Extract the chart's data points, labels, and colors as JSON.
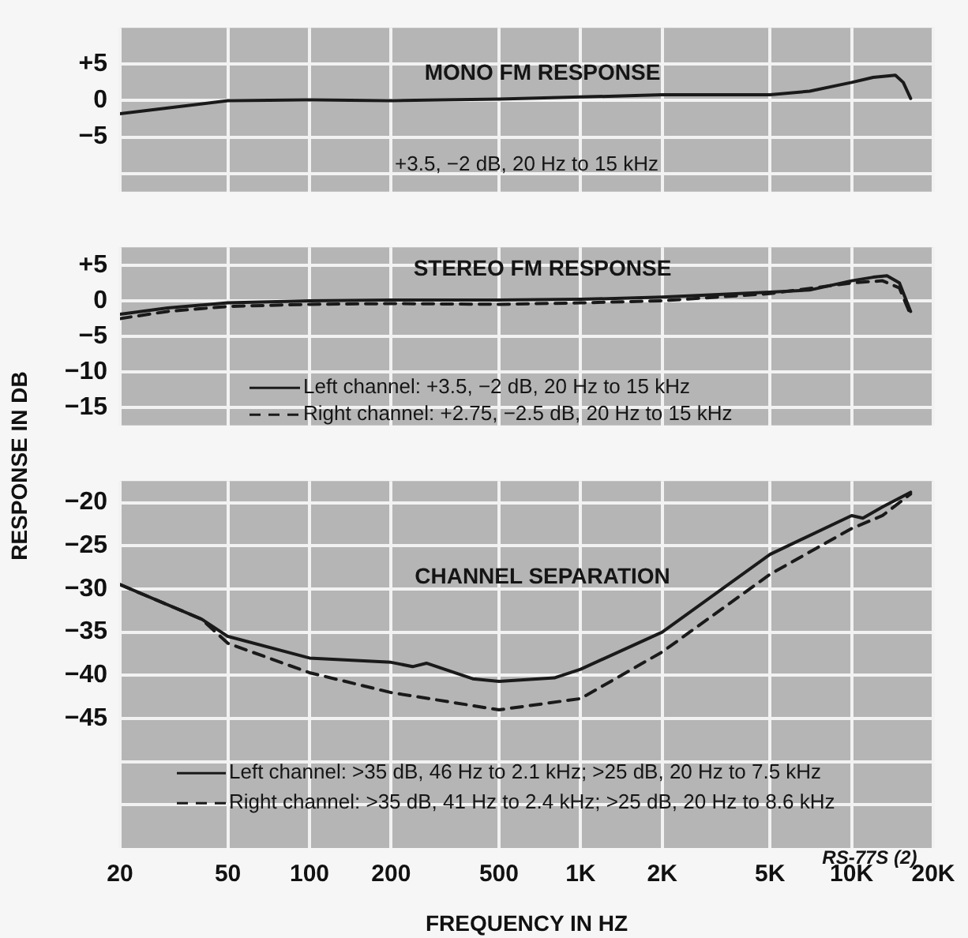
{
  "chart_data": [
    {
      "type": "line",
      "title": "MONO FM RESPONSE",
      "annotations": [
        "+3.5, −2 dB, 20 Hz to 15 kHz"
      ],
      "log": "x",
      "grid": true,
      "tick_labels": "y",
      "marker": "none",
      "xlim": [
        20,
        20000
      ],
      "xticks": [
        {
          "value": 20,
          "label": null
        },
        {
          "value": 50,
          "label": null
        },
        {
          "value": 100,
          "label": null
        },
        {
          "value": 200,
          "label": null
        },
        {
          "value": 500,
          "label": null
        },
        {
          "value": 1000,
          "label": null
        },
        {
          "value": 2000,
          "label": null
        },
        {
          "value": 5000,
          "label": null
        },
        {
          "value": 10000,
          "label": null
        },
        {
          "value": 20000,
          "label": null
        }
      ],
      "ylim": [
        -12.5,
        10
      ],
      "yticks": [
        {
          "value": 5,
          "label": "+5"
        },
        0,
        {
          "value": -5,
          "label": "−5"
        },
        {
          "value": -10,
          "label": null
        }
      ],
      "series": [
        {
          "color": "#1a1a1a",
          "line_style": "solid",
          "x": [
            20,
            30,
            50,
            100,
            200,
            500,
            1000,
            2000,
            5000,
            7000,
            10000,
            12000,
            14500,
            15500,
            16500
          ],
          "values": [
            -1.8,
            -1,
            0,
            0.1,
            0,
            0.2,
            0.5,
            0.8,
            0.8,
            1.3,
            2.5,
            3.2,
            3.5,
            2.5,
            0.3
          ]
        }
      ]
    },
    {
      "type": "line",
      "title": "STEREO FM RESPONSE",
      "ylabel": "RESPONSE IN DB",
      "log": "x",
      "grid": true,
      "tick_labels": "y",
      "legend": "bottom",
      "marker": "none",
      "xlim": [
        20,
        20000
      ],
      "xticks": [
        {
          "value": 20,
          "label": null
        },
        {
          "value": 50,
          "label": null
        },
        {
          "value": 100,
          "label": null
        },
        {
          "value": 200,
          "label": null
        },
        {
          "value": 500,
          "label": null
        },
        {
          "value": 1000,
          "label": null
        },
        {
          "value": 2000,
          "label": null
        },
        {
          "value": 5000,
          "label": null
        },
        {
          "value": 10000,
          "label": null
        },
        {
          "value": 20000,
          "label": null
        }
      ],
      "ylim": [
        -17.5,
        7.5
      ],
      "yticks": [
        {
          "value": 5,
          "label": "+5"
        },
        0,
        {
          "value": -5,
          "label": "−5"
        },
        {
          "value": -10,
          "label": "−10"
        },
        {
          "value": -15,
          "label": "−15"
        }
      ],
      "series": [
        {
          "name": "Left channel: +3.5, −2 dB, 20 Hz to 15 kHz",
          "color": "#1a1a1a",
          "line_style": "solid",
          "x": [
            20,
            30,
            50,
            100,
            200,
            500,
            1000,
            2000,
            5000,
            7000,
            10000,
            12000,
            13500,
            15000,
            16500
          ],
          "values": [
            -1.9,
            -1,
            -0.3,
            0,
            0.1,
            0.1,
            0.2,
            0.5,
            1.2,
            1.5,
            2.8,
            3.3,
            3.5,
            2.5,
            -1.5
          ]
        },
        {
          "name": "Right channel: +2.75, −2.5 dB, 20 Hz to 15 kHz",
          "color": "#1a1a1a",
          "line_style": "dashed",
          "x": [
            20,
            30,
            50,
            100,
            200,
            500,
            1000,
            2000,
            5000,
            10000,
            13000,
            15000,
            16500
          ],
          "values": [
            -2.5,
            -1.5,
            -0.8,
            -0.5,
            -0.4,
            -0.5,
            -0.3,
            0,
            1,
            2.5,
            2.8,
            1.8,
            -2
          ]
        }
      ]
    },
    {
      "type": "line",
      "title": "CHANNEL SEPARATION",
      "xlabel": "FREQUENCY IN HZ",
      "annotations": [
        "RS-77S (2)"
      ],
      "log": "x",
      "grid": true,
      "legend": "bottom",
      "marker": "none",
      "xlim": [
        20,
        20000
      ],
      "xticks": [
        20,
        50,
        100,
        200,
        500,
        {
          "value": 1000,
          "label": "1K"
        },
        {
          "value": 2000,
          "label": "2K"
        },
        {
          "value": 5000,
          "label": "5K"
        },
        {
          "value": 10000,
          "label": "10K"
        },
        {
          "value": 20000,
          "label": "20K"
        }
      ],
      "ylim": [
        -60,
        -17.5
      ],
      "yticks": [
        {
          "value": -20,
          "label": "−20"
        },
        {
          "value": -25,
          "label": "−25"
        },
        {
          "value": -30,
          "label": "−30"
        },
        {
          "value": -35,
          "label": "−35"
        },
        {
          "value": -40,
          "label": "−40"
        },
        {
          "value": -45,
          "label": "−45"
        },
        {
          "value": -50,
          "label": null
        },
        {
          "value": -55,
          "label": null
        }
      ],
      "series": [
        {
          "name": "Left channel: >35 dB, 46 Hz to 2.1 kHz; >25 dB, 20 Hz to 7.5 kHz",
          "color": "#1a1a1a",
          "line_style": "solid",
          "x": [
            20,
            40,
            50,
            100,
            200,
            240,
            270,
            400,
            500,
            800,
            1000,
            2000,
            5000,
            10000,
            11000,
            13000,
            16500
          ],
          "values": [
            -29.5,
            -33.5,
            -35.5,
            -38,
            -38.5,
            -39,
            -38.6,
            -40.4,
            -40.7,
            -40.3,
            -39.3,
            -35,
            -26,
            -21.5,
            -21.8,
            -20.5,
            -18.8
          ]
        },
        {
          "name": "Right channel: >35 dB, 41 Hz to 2.4 kHz; >25 dB, 20 Hz to 8.6 kHz",
          "color": "#1a1a1a",
          "line_style": "dashed",
          "x": [
            20,
            40,
            50,
            100,
            200,
            500,
            1000,
            2000,
            5000,
            10000,
            13000,
            16500
          ],
          "values": [
            -29.5,
            -33.5,
            -36.3,
            -39.7,
            -42,
            -44,
            -42.7,
            -37.3,
            -28.3,
            -23,
            -21.5,
            -19
          ]
        }
      ]
    }
  ]
}
